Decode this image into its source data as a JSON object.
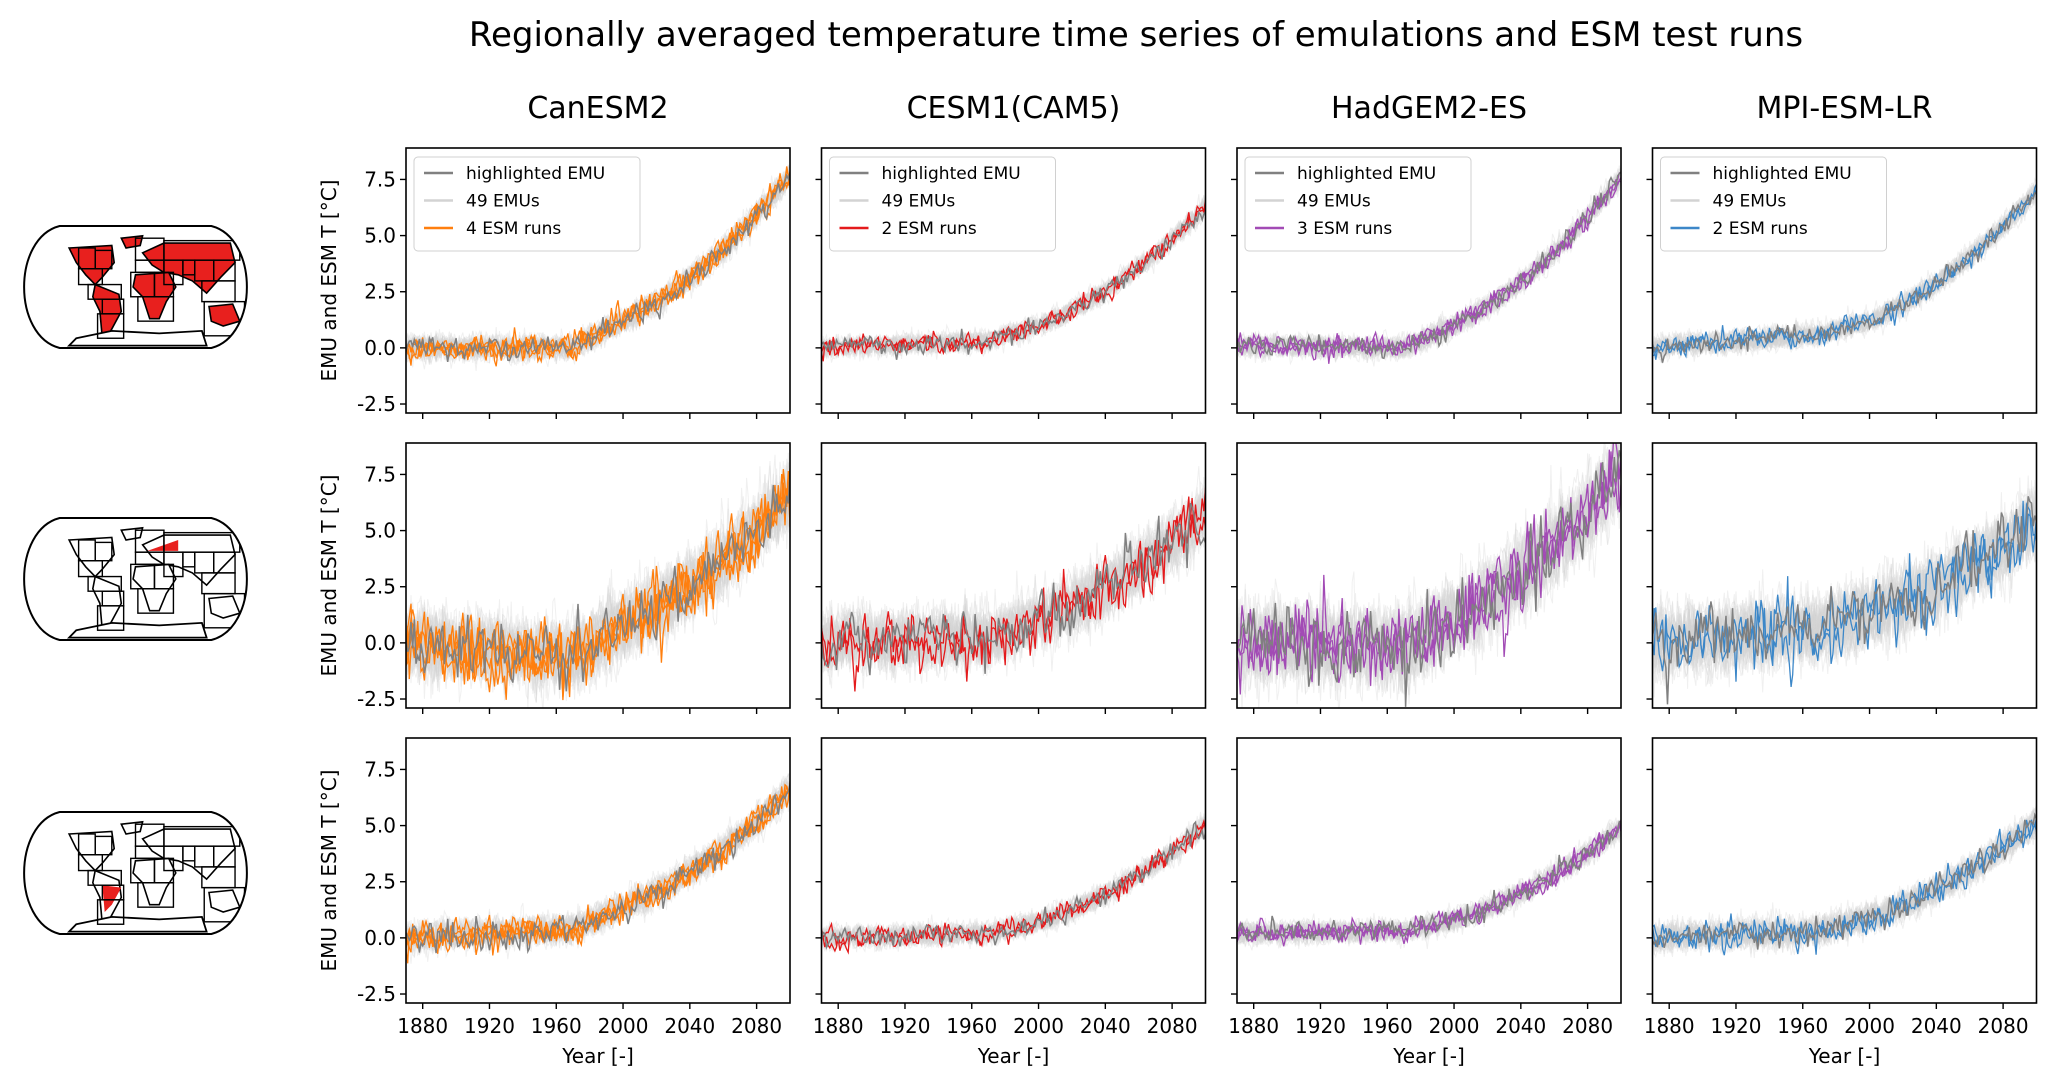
{
  "figure": {
    "title": "Regionally averaged temperature time series of emulations and ESM test runs"
  },
  "legend_labels": {
    "highlighted": "highlighted EMU",
    "emus": "49 EMUs"
  },
  "colors": {
    "highlighted_emu": "#808080",
    "emu_ensemble": "#d3d3d3",
    "map_region_fill": "#e8201e",
    "axes": "#000000"
  },
  "chart_data": {
    "type": "line",
    "title": "Regionally averaged temperature time series of emulations and ESM test runs",
    "xlabel": "Year [-]",
    "ylabel": "EMU and ESM T [°C]",
    "xlim": [
      1870,
      2100
    ],
    "ylim": [
      -2.9,
      8.9
    ],
    "xticks": [
      1880,
      1920,
      1960,
      2000,
      2040,
      2080
    ],
    "xtick_labels": [
      "1880",
      "1920",
      "1960",
      "2000",
      "2040",
      "2080"
    ],
    "yticks": [
      -2.5,
      0.0,
      2.5,
      5.0,
      7.5
    ],
    "ytick_labels": [
      "-2.5",
      "0.0",
      "2.5",
      "5.0",
      "7.5"
    ],
    "grid": false,
    "legend_location": "top-left (first row only)",
    "columns": [
      {
        "model": "CanESM2",
        "color": "#ff7f0e",
        "esm_runs_label": "4 ESM runs",
        "n_esm_runs": 4
      },
      {
        "model": "CESM1(CAM5)",
        "color": "#e41a1c",
        "esm_runs_label": "2 ESM runs",
        "n_esm_runs": 2
      },
      {
        "model": "HadGEM2-ES",
        "color": "#a24bb5",
        "esm_runs_label": "3 ESM runs",
        "n_esm_runs": 3
      },
      {
        "model": "MPI-ESM-LR",
        "color": "#3c87c8",
        "esm_runs_label": "2 ESM runs",
        "n_esm_runs": 2
      }
    ],
    "rows": [
      {
        "region": "Global land (all regions highlighted)",
        "map_highlight": "all",
        "series_summary": [
          {
            "model": "CanESM2",
            "value_1870": 0.0,
            "value_1970": 0.0,
            "value_2000": 1.2,
            "value_2100": 7.7,
            "noise_sd": 0.25
          },
          {
            "model": "CESM1(CAM5)",
            "value_1870": 0.0,
            "value_1970": 0.3,
            "value_2000": 1.0,
            "value_2100": 6.3,
            "noise_sd": 0.2
          },
          {
            "model": "HadGEM2-ES",
            "value_1870": 0.1,
            "value_1970": 0.0,
            "value_2000": 1.0,
            "value_2100": 7.6,
            "noise_sd": 0.22
          },
          {
            "model": "MPI-ESM-LR",
            "value_1870": 0.0,
            "value_1970": 0.6,
            "value_2000": 1.2,
            "value_2100": 7.0,
            "noise_sd": 0.22
          }
        ]
      },
      {
        "region": "Northern Europe",
        "map_highlight": "northern-europe",
        "series_summary": [
          {
            "model": "CanESM2",
            "value_1870": 0.0,
            "value_1970": -0.6,
            "value_2000": 0.8,
            "value_2100": 6.6,
            "noise_sd": 0.7
          },
          {
            "model": "CESM1(CAM5)",
            "value_1870": 0.0,
            "value_1970": 0.2,
            "value_2000": 1.0,
            "value_2100": 5.8,
            "noise_sd": 0.6
          },
          {
            "model": "HadGEM2-ES",
            "value_1870": 0.0,
            "value_1970": -0.3,
            "value_2000": 1.1,
            "value_2100": 7.6,
            "noise_sd": 0.8
          },
          {
            "model": "MPI-ESM-LR",
            "value_1870": 0.0,
            "value_1970": 0.6,
            "value_2000": 1.3,
            "value_2100": 5.4,
            "noise_sd": 0.7
          }
        ]
      },
      {
        "region": "Southern South America",
        "map_highlight": "southern-south-america",
        "series_summary": [
          {
            "model": "CanESM2",
            "value_1870": 0.0,
            "value_1970": 0.4,
            "value_2000": 1.4,
            "value_2100": 6.6,
            "noise_sd": 0.3
          },
          {
            "model": "CESM1(CAM5)",
            "value_1870": 0.0,
            "value_1970": 0.2,
            "value_2000": 0.7,
            "value_2100": 5.0,
            "noise_sd": 0.22
          },
          {
            "model": "HadGEM2-ES",
            "value_1870": 0.2,
            "value_1970": 0.3,
            "value_2000": 0.8,
            "value_2100": 4.9,
            "noise_sd": 0.22
          },
          {
            "model": "MPI-ESM-LR",
            "value_1870": 0.0,
            "value_1970": 0.3,
            "value_2000": 0.9,
            "value_2100": 5.2,
            "noise_sd": 0.3
          }
        ]
      }
    ]
  }
}
